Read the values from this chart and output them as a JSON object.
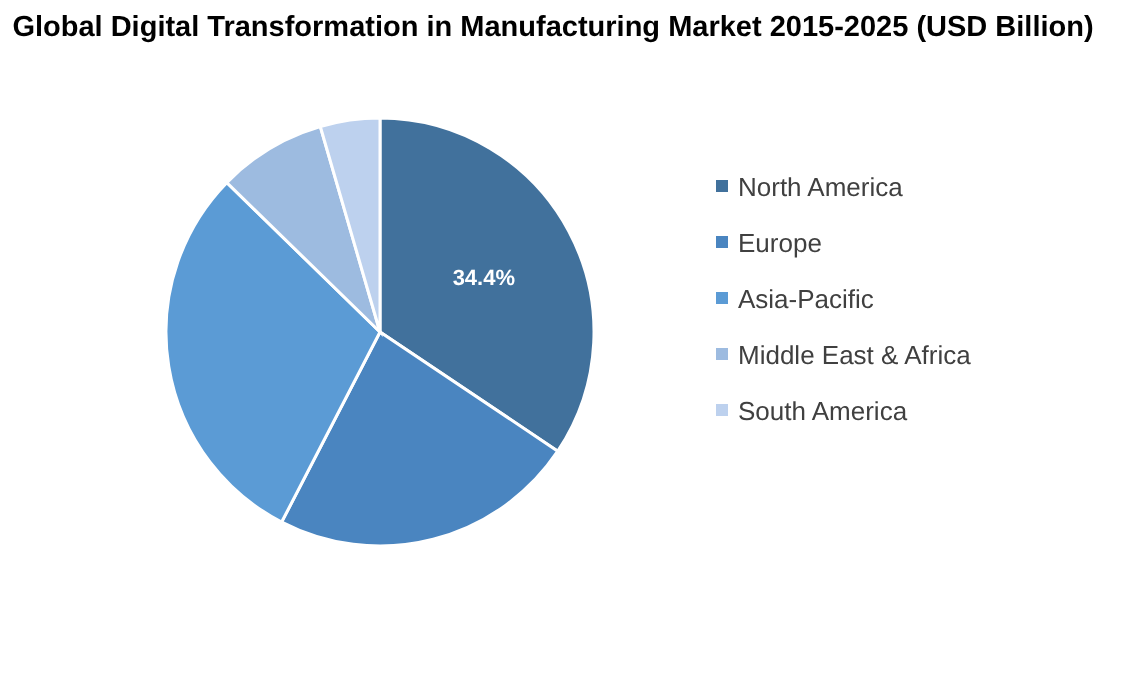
{
  "chart_data": {
    "type": "pie",
    "title": "Global Digital Transformation in Manufacturing Market 2015-2025 (USD Billion)",
    "categories": [
      "North America",
      "Europe",
      "Asia-Pacific",
      "Middle East & Africa",
      "South America"
    ],
    "values": [
      34.4,
      23.2,
      29.7,
      8.2,
      4.5
    ],
    "value_labels": [
      "34.4%",
      null,
      null,
      null,
      null
    ],
    "colors": [
      "#41719c",
      "#4a85c0",
      "#5b9bd5",
      "#9dbbe0",
      "#bdd1ee"
    ],
    "legend": "right"
  }
}
